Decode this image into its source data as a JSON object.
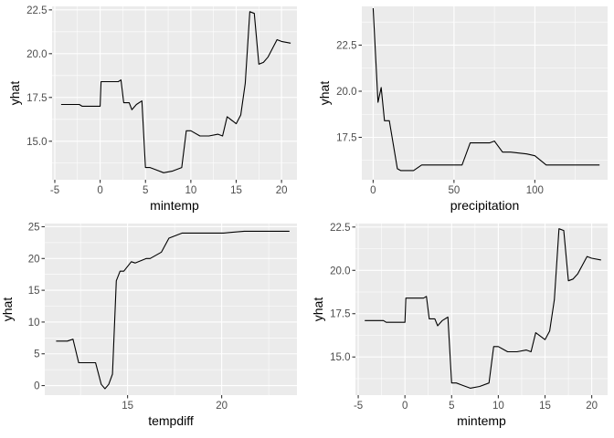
{
  "chart_data": [
    {
      "type": "line",
      "xlabel": "mintemp",
      "ylabel": "yhat",
      "xlim": [
        -5.3,
        21.7
      ],
      "ylim": [
        12.8,
        22.7
      ],
      "xticks": [
        -5,
        0,
        5,
        10,
        15,
        20
      ],
      "xtick_labels": [
        "-5",
        "0",
        "5",
        "10",
        "15",
        "20"
      ],
      "yticks": [
        15.0,
        17.5,
        20.0,
        22.5
      ],
      "ytick_labels": [
        "15.0",
        "17.5",
        "20.0",
        "22.5"
      ],
      "grid": true,
      "x": [
        -4.3,
        -2.3,
        -2.0,
        0.0,
        0.1,
        2.0,
        2.3,
        2.6,
        3.2,
        3.5,
        4.0,
        4.6,
        5.0,
        5.5,
        6.0,
        7.0,
        8.0,
        9.0,
        9.5,
        10.0,
        11.0,
        12.0,
        13.0,
        13.5,
        14.0,
        15.0,
        15.5,
        16.0,
        16.5,
        17.0,
        17.5,
        18.0,
        18.5,
        19.0,
        19.5,
        20.0,
        21.0
      ],
      "y": [
        17.1,
        17.1,
        17.0,
        17.0,
        18.4,
        18.4,
        18.5,
        17.2,
        17.2,
        16.8,
        17.1,
        17.3,
        13.5,
        13.5,
        13.4,
        13.2,
        13.3,
        13.5,
        15.6,
        15.6,
        15.3,
        15.3,
        15.4,
        15.3,
        16.4,
        16.0,
        16.5,
        18.3,
        22.4,
        22.3,
        19.4,
        19.5,
        19.8,
        20.3,
        20.8,
        20.7,
        20.6
      ]
    },
    {
      "type": "line",
      "xlabel": "precipitation",
      "ylabel": "yhat",
      "xlim": [
        -7,
        145
      ],
      "ylim": [
        15.2,
        24.6
      ],
      "xticks": [
        0,
        50,
        100
      ],
      "xtick_labels": [
        "0",
        "50",
        "100"
      ],
      "yticks": [
        17.5,
        20.0,
        22.5
      ],
      "ytick_labels": [
        "17.5",
        "20.0",
        "22.5"
      ],
      "grid": true,
      "x": [
        0,
        3,
        5,
        7,
        10,
        15,
        17,
        20,
        25,
        30,
        32,
        55,
        60,
        72,
        75,
        80,
        85,
        95,
        100,
        107,
        140
      ],
      "y": [
        24.5,
        19.4,
        20.2,
        18.4,
        18.4,
        15.8,
        15.7,
        15.7,
        15.7,
        16.0,
        16.0,
        16.0,
        17.2,
        17.2,
        17.3,
        16.7,
        16.7,
        16.6,
        16.5,
        16.0,
        16.0
      ]
    },
    {
      "type": "line",
      "xlabel": "tempdiff",
      "ylabel": "yhat",
      "xlim": [
        10.6,
        24.0
      ],
      "ylim": [
        -1.5,
        25.5
      ],
      "xticks": [
        15,
        20
      ],
      "xtick_labels": [
        "15",
        "20"
      ],
      "yticks": [
        0,
        5,
        10,
        15,
        20,
        25
      ],
      "ytick_labels": [
        "0",
        "5",
        "10",
        "15",
        "20",
        "25"
      ],
      "grid": true,
      "x": [
        11.2,
        11.8,
        12.1,
        12.4,
        13.3,
        13.6,
        13.8,
        14.0,
        14.2,
        14.4,
        14.6,
        14.8,
        15.2,
        15.4,
        16.0,
        16.2,
        16.8,
        17.2,
        17.9,
        20.1,
        21.2,
        23.6
      ],
      "y": [
        7.0,
        7.0,
        7.3,
        3.6,
        3.6,
        0.2,
        -0.5,
        0.2,
        1.8,
        16.5,
        18.0,
        18.0,
        19.5,
        19.3,
        20.0,
        20.0,
        21.0,
        23.2,
        24.0,
        24.0,
        24.3,
        24.3
      ]
    },
    {
      "type": "line",
      "xlabel": "mintemp",
      "ylabel": "yhat",
      "xlim": [
        -5.3,
        21.7
      ],
      "ylim": [
        12.8,
        22.7
      ],
      "xticks": [
        -5,
        0,
        5,
        10,
        15,
        20
      ],
      "xtick_labels": [
        "-5",
        "0",
        "5",
        "10",
        "15",
        "20"
      ],
      "yticks": [
        15.0,
        17.5,
        20.0,
        22.5
      ],
      "ytick_labels": [
        "15.0",
        "17.5",
        "20.0",
        "22.5"
      ],
      "grid": true,
      "x": [
        -4.3,
        -2.3,
        -2.0,
        0.0,
        0.1,
        2.0,
        2.3,
        2.6,
        3.2,
        3.5,
        4.0,
        4.6,
        5.0,
        5.5,
        6.0,
        7.0,
        8.0,
        9.0,
        9.5,
        10.0,
        11.0,
        12.0,
        13.0,
        13.5,
        14.0,
        15.0,
        15.5,
        16.0,
        16.5,
        17.0,
        17.5,
        18.0,
        18.5,
        19.0,
        19.5,
        20.0,
        21.0
      ],
      "y": [
        17.1,
        17.1,
        17.0,
        17.0,
        18.4,
        18.4,
        18.5,
        17.2,
        17.2,
        16.8,
        17.1,
        17.3,
        13.5,
        13.5,
        13.4,
        13.2,
        13.3,
        13.5,
        15.6,
        15.6,
        15.3,
        15.3,
        15.4,
        15.3,
        16.4,
        16.0,
        16.5,
        18.3,
        22.4,
        22.3,
        19.4,
        19.5,
        19.8,
        20.3,
        20.8,
        20.7,
        20.6
      ]
    }
  ]
}
